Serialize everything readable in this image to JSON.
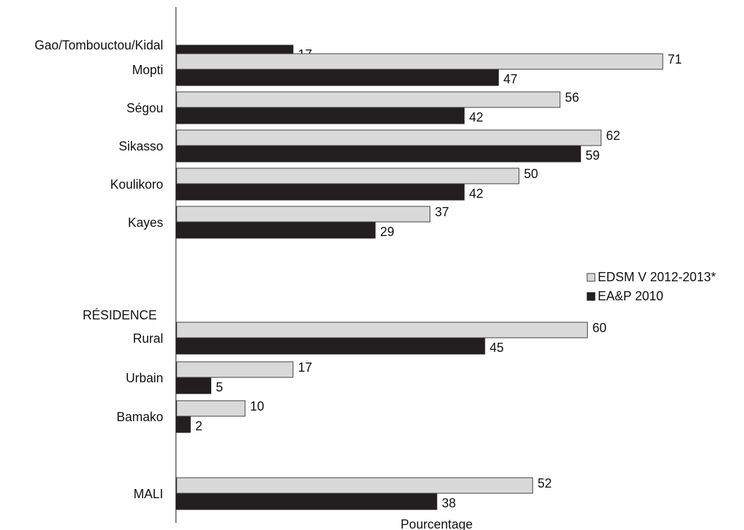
{
  "chart_data": {
    "type": "bar",
    "orientation": "horizontal",
    "xlabel": "Pourcentage",
    "xlim": [
      0,
      80
    ],
    "grid": false,
    "legend_position": "right",
    "section_heading": "RÉSIDENCE",
    "series": [
      {
        "name": "EDSM V 2012-2013*",
        "color": "#d9d9d9"
      },
      {
        "name": "EA&P 2010",
        "color": "#231f20"
      }
    ],
    "categories": [
      {
        "label": "Gao/Tombouctou/Kidal",
        "values": [
          null,
          17
        ]
      },
      {
        "label": "Mopti",
        "values": [
          71,
          47
        ]
      },
      {
        "label": "Ségou",
        "values": [
          56,
          42
        ]
      },
      {
        "label": "Sikasso",
        "values": [
          62,
          59
        ]
      },
      {
        "label": "Koulikoro",
        "values": [
          50,
          42
        ]
      },
      {
        "label": "Kayes",
        "values": [
          37,
          29
        ]
      },
      {
        "label": "Rural",
        "values": [
          60,
          45
        ]
      },
      {
        "label": "Urbain",
        "values": [
          17,
          5
        ]
      },
      {
        "label": "Bamako",
        "values": [
          10,
          2
        ]
      },
      {
        "label": "MALI",
        "values": [
          52,
          38
        ]
      }
    ]
  }
}
